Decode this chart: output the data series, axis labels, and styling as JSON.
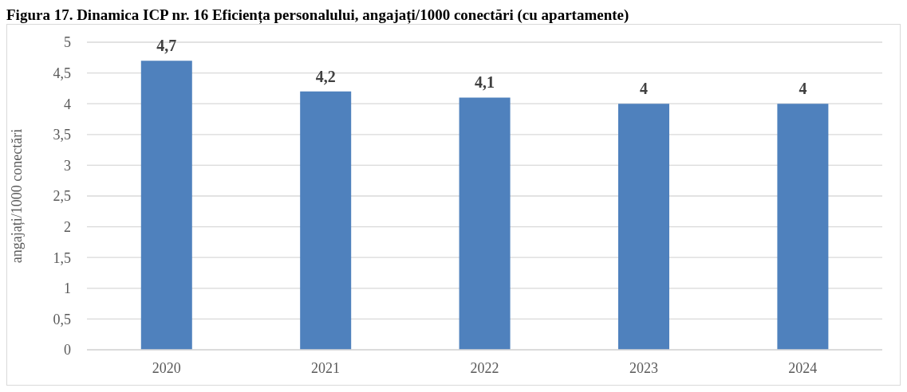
{
  "chart_data": {
    "type": "bar",
    "title": "Figura 17. Dinamica ICP nr. 16 Eficiența personalului, angajați/1000 conectări (cu apartamente)",
    "ylabel": "angajați/1000 conectări",
    "categories": [
      "2020",
      "2021",
      "2022",
      "2023",
      "2024"
    ],
    "values": [
      4.7,
      4.2,
      4.1,
      4,
      4
    ],
    "color": "#4f81bd",
    "value_labels": [
      "4,7",
      "4,2",
      "4,1",
      "4",
      "4"
    ],
    "ylim": [
      0,
      5
    ],
    "yticks": [
      0,
      {
        "value": 0.5,
        "label": "0,5"
      },
      1,
      {
        "value": 1.5,
        "label": "1,5"
      },
      2,
      {
        "value": 2.5,
        "label": "2,5"
      },
      3,
      {
        "value": 3.5,
        "label": "3,5"
      },
      4,
      {
        "value": 4.5,
        "label": "4,5"
      },
      5
    ],
    "grid": "y"
  }
}
